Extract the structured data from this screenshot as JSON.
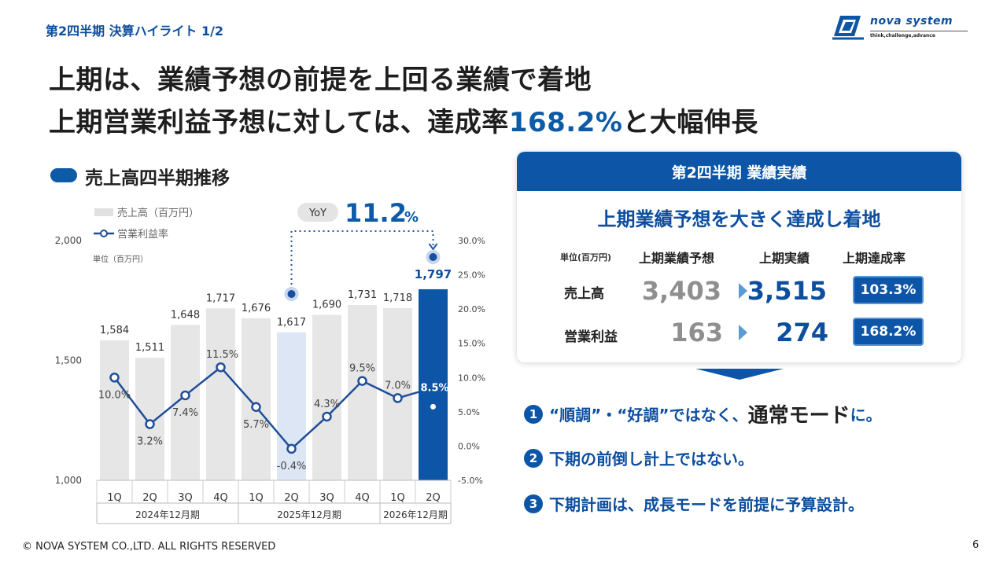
{
  "header": {
    "section_title": "第2四半期 決算ハイライト 1/2",
    "logo_name": "nova system",
    "logo_tagline": "think,challenge,advance"
  },
  "headline": {
    "line1": "上期は、業績予想の前提を上回る業績で着地",
    "line2_before": "上期営業利益予想に対しては、達成率",
    "line2_accent": "168.2%",
    "line2_after": "と大幅伸長"
  },
  "chart_heading": "売上高四半期推移",
  "chart_data": {
    "type": "bar",
    "categories": [
      "1Q",
      "2Q",
      "3Q",
      "4Q",
      "1Q",
      "2Q",
      "3Q",
      "4Q",
      "1Q",
      "2Q"
    ],
    "periods": [
      {
        "label": "2024年12月期",
        "span": 4
      },
      {
        "label": "2025年12月期",
        "span": 4
      },
      {
        "label": "2026年12月期",
        "span": 2
      }
    ],
    "series": [
      {
        "name": "売上高（百万円）",
        "type": "bar",
        "values": [
          1584,
          1511,
          1648,
          1717,
          1676,
          1617,
          1690,
          1731,
          1718,
          1797
        ],
        "labels": [
          "1,584",
          "1,511",
          "1,648",
          "1,717",
          "1,676",
          "1,617",
          "1,690",
          "1,731",
          "1,718",
          "1,797"
        ]
      },
      {
        "name": "営業利益率",
        "type": "line",
        "values": [
          10.0,
          3.2,
          7.4,
          11.5,
          5.7,
          -0.4,
          4.3,
          9.5,
          7.0,
          8.5
        ],
        "labels": [
          "10.0%",
          "3.2%",
          "7.4%",
          "11.5%",
          "5.7%",
          "-0.4%",
          "4.3%",
          "9.5%",
          "7.0%",
          "8.5%"
        ]
      }
    ],
    "y_left": {
      "ticks": [
        1000,
        1500,
        2000
      ],
      "tick_labels": [
        "1,000",
        "1,500",
        "2,000"
      ],
      "ylim": [
        1000,
        2000
      ]
    },
    "y_right": {
      "ticks": [
        -5,
        0,
        5,
        10,
        15,
        20,
        25,
        30
      ],
      "tick_labels": [
        "-5.0%",
        "0.0%",
        "5.0%",
        "10.0%",
        "15.0%",
        "20.0%",
        "25.0%",
        "30.0%"
      ],
      "ylim": [
        -5,
        30
      ]
    },
    "unit_note": "単位（百万円）",
    "yoy": {
      "label": "YoY",
      "value": "11.2",
      "unit": "%",
      "from_index": 5,
      "to_index": 9
    },
    "colors": {
      "bar": "#e6e6e6",
      "bar_prev": "#dce6f5",
      "bar_current": "#0d55a6",
      "line": "#1f4e9a"
    }
  },
  "results_panel": {
    "title": "第2四半期 業績実績",
    "subtitle": "上期業績予想を大きく達成し着地",
    "unit": "単位(百万円)",
    "col_plan": "上期業績予想",
    "col_actual": "上期実績",
    "col_rate": "上期達成率",
    "rows": [
      {
        "label": "売上高",
        "plan": "3,403",
        "actual": "3,515",
        "rate": "103.3%"
      },
      {
        "label": "営業利益",
        "plan": "163",
        "actual": "274",
        "rate": "168.2%"
      }
    ]
  },
  "points": [
    {
      "num": "1",
      "text": "“順調”・“好調”ではなく、",
      "emphasis": "通常モード",
      "suffix": "に。"
    },
    {
      "num": "2",
      "text": "下期の前倒し計上ではない。"
    },
    {
      "num": "3",
      "text": "下期計画は、成長モードを前提に予算設計。"
    }
  ],
  "footer": {
    "copyright": "© NOVA SYSTEM CO.,LTD. ALL RIGHTS RESERVED",
    "page": "6"
  },
  "theme": {
    "primary": "#0d55a6",
    "text": "#222222"
  }
}
